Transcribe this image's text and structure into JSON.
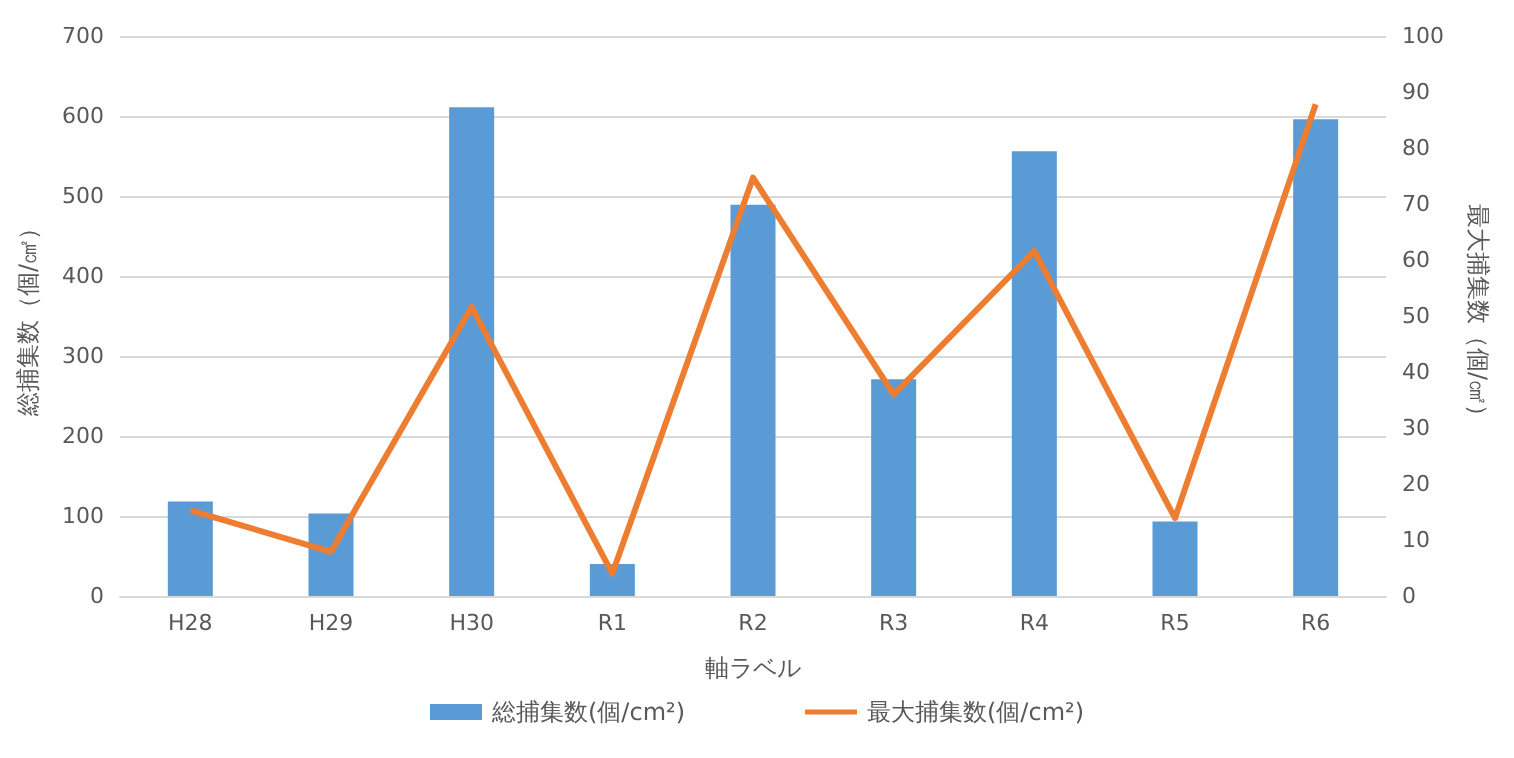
{
  "chart_data": {
    "type": "bar",
    "xlabel": "軸ラベル",
    "ylabel": "総捕集数（個/㎠）",
    "y2label": "最大捕集数（個/㎠）",
    "categories": [
      "H28",
      "H29",
      "H30",
      "R1",
      "R2",
      "R3",
      "R4",
      "R5",
      "R6"
    ],
    "series": [
      {
        "name": "総捕集数(個/cm²)",
        "color": "#5b9bd5",
        "values": [
          118,
          103,
          611,
          40,
          489,
          271,
          556,
          93,
          596
        ]
      },
      {
        "name": "最大捕集数(個/cm²)",
        "type": "line",
        "axis": "y2",
        "color": "#ed7d31",
        "values": [
          15.3,
          7.9,
          51.6,
          4,
          74.7,
          36,
          61.6,
          13.9,
          87.8
        ]
      }
    ],
    "ylim": [
      0,
      700
    ],
    "yticks": [
      0,
      100,
      200,
      300,
      400,
      500,
      600,
      700
    ],
    "y2lim": [
      0,
      100
    ],
    "y2ticks": [
      0,
      10,
      20,
      30,
      40,
      50,
      60,
      70,
      80,
      90,
      100
    ],
    "grid": "y",
    "legend": "bottom",
    "marker": "none"
  }
}
